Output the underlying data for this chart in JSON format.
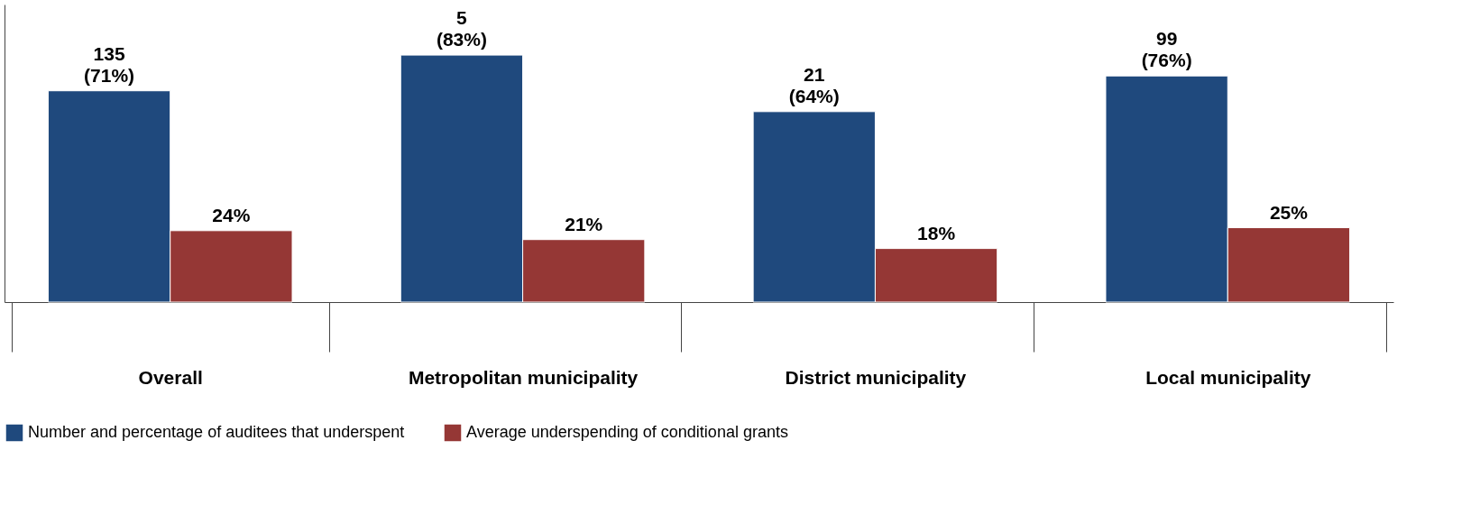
{
  "chart_data": {
    "type": "bar",
    "categories": [
      "Overall",
      "Metropolitan municipality",
      "District municipality",
      "Local municipality"
    ],
    "series": [
      {
        "name": "Number and percentage of auditees that underspent",
        "color": "#1f497d",
        "values": [
          71,
          83,
          64,
          76
        ],
        "value_labels": [
          "135\n(71%)",
          "5\n(83%)",
          "21\n(64%)",
          "99\n(76%)"
        ]
      },
      {
        "name": "Average underspending of conditional grants",
        "color": "#953735",
        "values": [
          24,
          21,
          18,
          25
        ],
        "value_labels": [
          "24%",
          "21%",
          "18%",
          "25%"
        ]
      }
    ],
    "ylim": [
      0,
      100
    ],
    "grid": false,
    "legend": "bottom",
    "tick_labels": "x"
  }
}
